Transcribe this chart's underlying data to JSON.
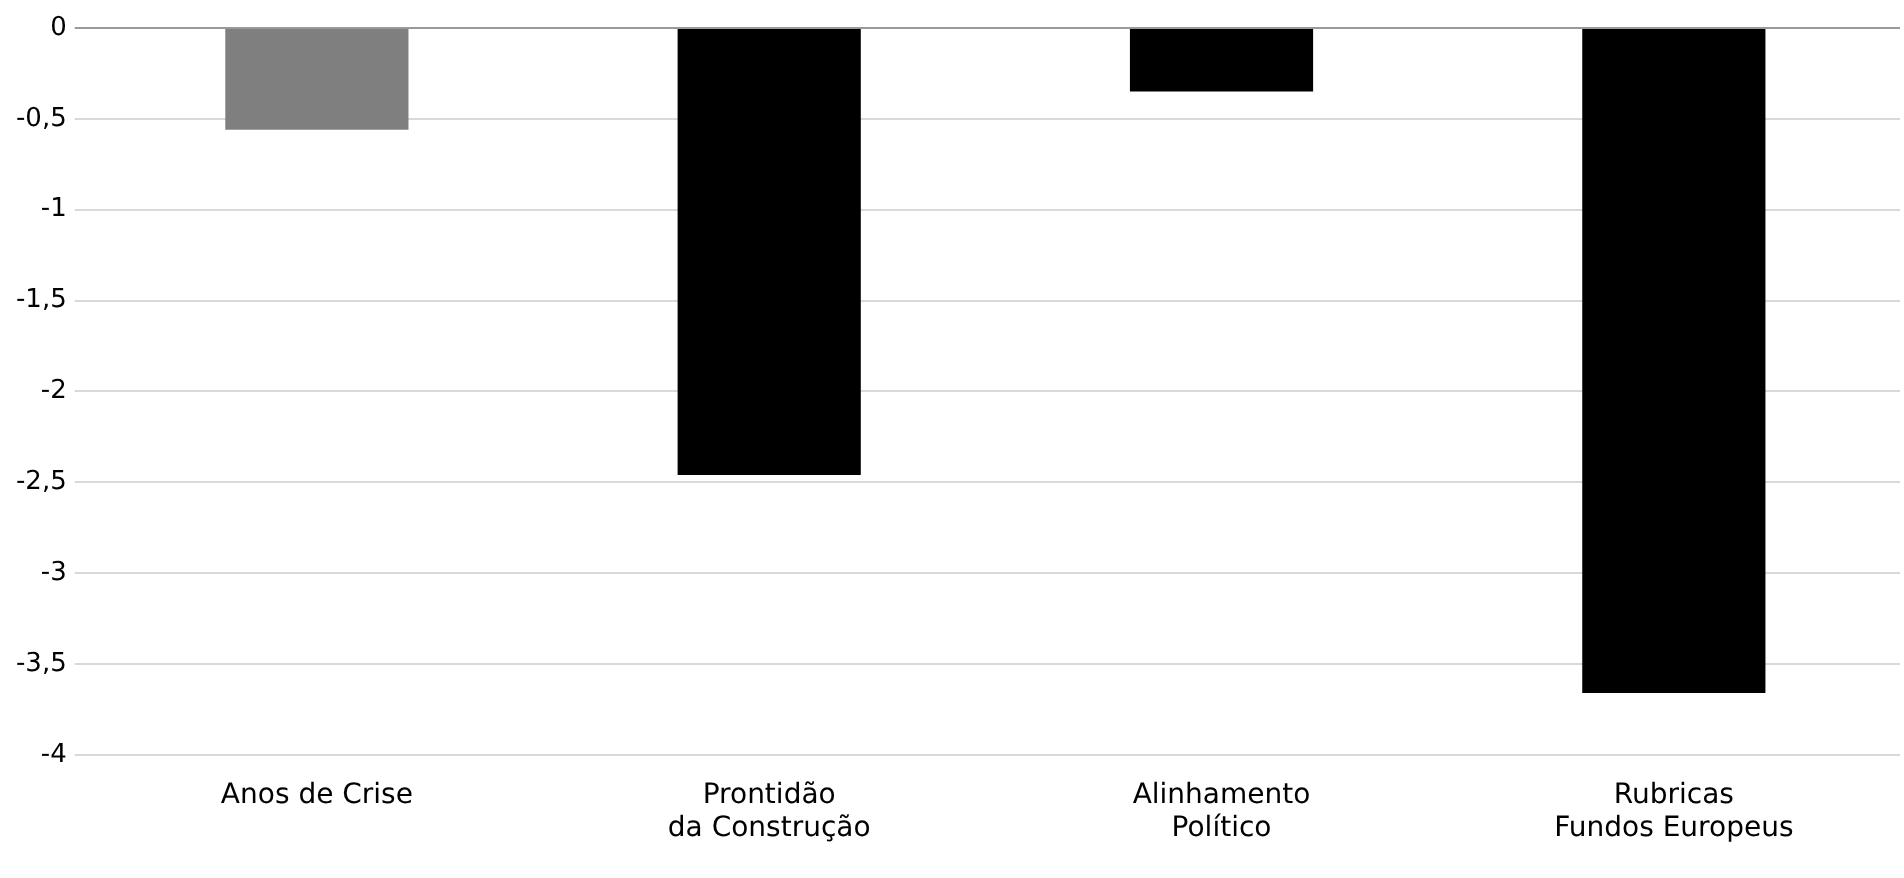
{
  "chart_data": {
    "type": "bar",
    "categories": [
      "Anos de Crise",
      "Prontidão\nda Construção",
      "Alinhamento\nPolítico",
      "Rubricas\nFundos Europeus"
    ],
    "values": [
      -0.56,
      -2.46,
      -0.35,
      -3.66
    ],
    "colors": [
      "#7f7f7f",
      "#000000",
      "#000000",
      "#000000"
    ],
    "ylim": [
      -4,
      0
    ],
    "yticks": [
      {
        "value": 0,
        "label": "0"
      },
      {
        "value": -0.5,
        "label": "-0,5"
      },
      {
        "value": -1,
        "label": "-1"
      },
      {
        "value": -1.5,
        "label": "-1,5"
      },
      {
        "value": -2,
        "label": "-2"
      },
      {
        "value": -2.5,
        "label": "-2,5"
      },
      {
        "value": -3,
        "label": "-3"
      },
      {
        "value": -3.5,
        "label": "-3,5"
      },
      {
        "value": -4,
        "label": "-4"
      }
    ],
    "grid": "y"
  }
}
